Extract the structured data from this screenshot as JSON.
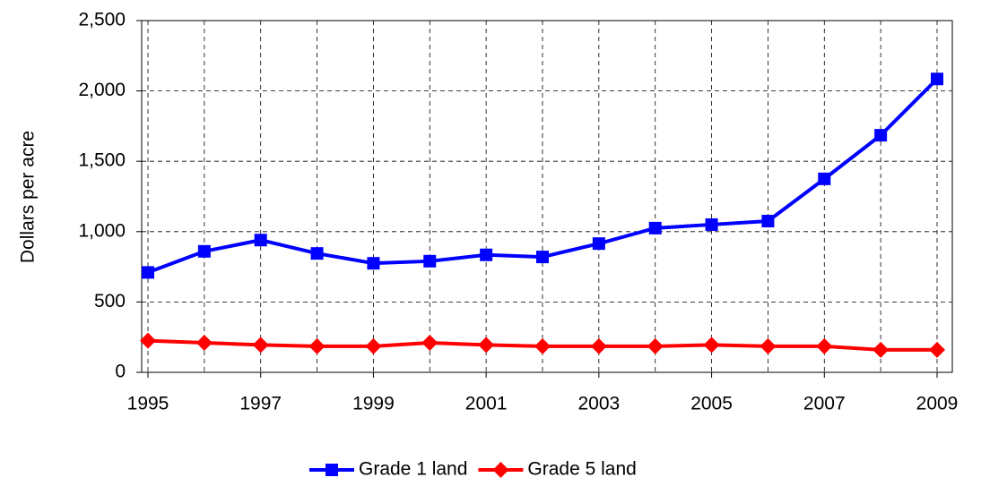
{
  "chart_data": {
    "type": "line",
    "y_label": "Dollars per acre",
    "x": [
      1995,
      1996,
      1997,
      1998,
      1999,
      2000,
      2001,
      2002,
      2003,
      2004,
      2005,
      2006,
      2007,
      2008,
      2009
    ],
    "xlim": [
      1995,
      2009
    ],
    "xticks": [
      1995,
      1997,
      1999,
      2001,
      2003,
      2005,
      2007,
      2009
    ],
    "ylim": [
      0,
      2500
    ],
    "yticks": [
      0,
      500,
      {
        "value": 1000,
        "label": "1,000"
      },
      {
        "value": 1500,
        "label": "1,500"
      },
      {
        "value": 2000,
        "label": "2,000"
      },
      {
        "value": 2500,
        "label": "2,500"
      }
    ],
    "grid": true,
    "legend": "bottom",
    "series": [
      {
        "name": "Grade 1 land",
        "color": "#0000ff",
        "marker": "square",
        "values": [
          710,
          860,
          940,
          845,
          775,
          790,
          835,
          820,
          915,
          1025,
          1050,
          1075,
          1375,
          1685,
          2085
        ]
      },
      {
        "name": "Grade 5 land",
        "color": "#ff0000",
        "marker": "diamond",
        "values": [
          225,
          210,
          195,
          185,
          185,
          210,
          195,
          185,
          185,
          185,
          195,
          185,
          185,
          160,
          160
        ]
      }
    ]
  }
}
